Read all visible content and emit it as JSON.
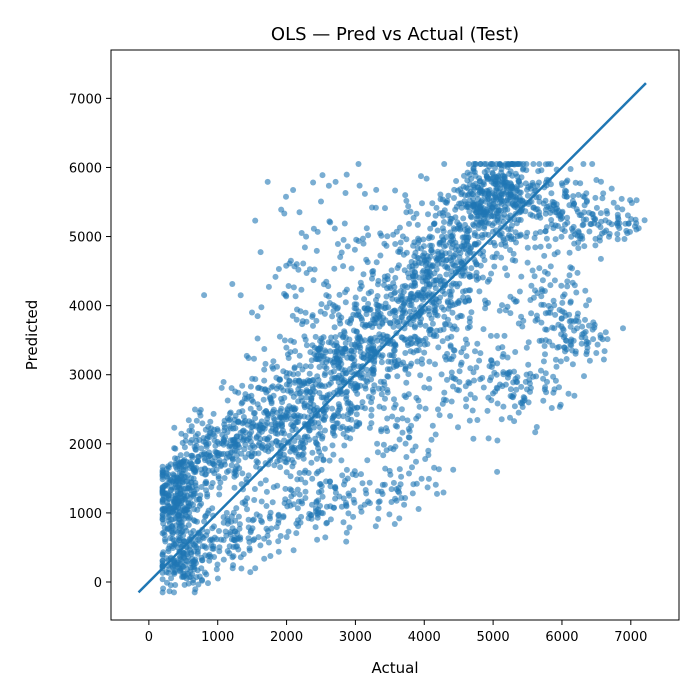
{
  "chart_data": {
    "type": "scatter",
    "title": "OLS — Pred vs Actual (Test)",
    "xlabel": "Actual",
    "ylabel": "Predicted",
    "xlim": [
      -550,
      7700
    ],
    "ylim": [
      -550,
      7700
    ],
    "xticks": [
      0,
      1000,
      2000,
      3000,
      4000,
      5000,
      6000,
      7000
    ],
    "yticks": [
      0,
      1000,
      2000,
      3000,
      4000,
      5000,
      6000,
      7000
    ],
    "grid": false,
    "point_color": "#1f77b4",
    "line_color": "#1f77b4",
    "reference_line": {
      "x": [
        -150,
        7220
      ],
      "y": [
        -150,
        7220
      ]
    },
    "clusters": [
      {
        "cx": 400,
        "cy": 1200,
        "sx": 150,
        "sy": 350,
        "n": 260
      },
      {
        "cx": 500,
        "cy": 300,
        "sx": 180,
        "sy": 220,
        "n": 150
      },
      {
        "cx": 800,
        "cy": 1700,
        "sx": 260,
        "sy": 300,
        "n": 120
      },
      {
        "cx": 1300,
        "cy": 2000,
        "sx": 300,
        "sy": 300,
        "n": 180
      },
      {
        "cx": 1100,
        "cy": 600,
        "sx": 350,
        "sy": 250,
        "n": 120
      },
      {
        "cx": 2000,
        "cy": 2300,
        "sx": 400,
        "sy": 450,
        "n": 220
      },
      {
        "cx": 2500,
        "cy": 2800,
        "sx": 450,
        "sy": 450,
        "n": 240
      },
      {
        "cx": 3000,
        "cy": 3200,
        "sx": 400,
        "sy": 450,
        "n": 220
      },
      {
        "cx": 2200,
        "cy": 1000,
        "sx": 450,
        "sy": 250,
        "n": 90
      },
      {
        "cx": 3000,
        "cy": 1300,
        "sx": 500,
        "sy": 200,
        "n": 80
      },
      {
        "cx": 2300,
        "cy": 4300,
        "sx": 500,
        "sy": 600,
        "n": 70
      },
      {
        "cx": 3000,
        "cy": 5200,
        "sx": 500,
        "sy": 400,
        "n": 50
      },
      {
        "cx": 3500,
        "cy": 3700,
        "sx": 400,
        "sy": 450,
        "n": 200
      },
      {
        "cx": 4000,
        "cy": 4200,
        "sx": 350,
        "sy": 450,
        "n": 220
      },
      {
        "cx": 4500,
        "cy": 4800,
        "sx": 350,
        "sy": 450,
        "n": 260
      },
      {
        "cx": 5000,
        "cy": 5600,
        "sx": 350,
        "sy": 300,
        "n": 260
      },
      {
        "cx": 5400,
        "cy": 5500,
        "sx": 500,
        "sy": 300,
        "n": 180
      },
      {
        "cx": 6400,
        "cy": 5200,
        "sx": 450,
        "sy": 200,
        "n": 130
      },
      {
        "cx": 5800,
        "cy": 4000,
        "sx": 350,
        "sy": 300,
        "n": 90
      },
      {
        "cx": 6200,
        "cy": 3500,
        "sx": 300,
        "sy": 200,
        "n": 70
      },
      {
        "cx": 5400,
        "cy": 2800,
        "sx": 300,
        "sy": 200,
        "n": 80
      },
      {
        "cx": 4700,
        "cy": 3000,
        "sx": 350,
        "sy": 400,
        "n": 70
      },
      {
        "cx": 3700,
        "cy": 2100,
        "sx": 350,
        "sy": 400,
        "n": 70
      }
    ]
  }
}
